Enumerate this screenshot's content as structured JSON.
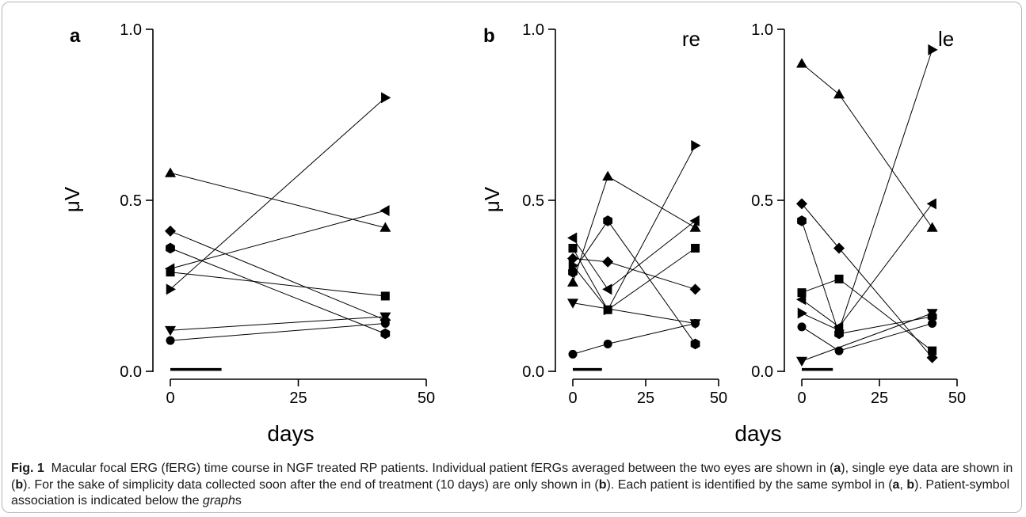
{
  "figure": {
    "panel_labels": [
      "a",
      "b"
    ],
    "units_label": "μV",
    "x_title": "days",
    "eye_labels": [
      "re",
      "le"
    ]
  },
  "caption": {
    "fig_label": "Fig. 1",
    "t1": "Macular focal ERG (fERG) time course in NGF treated RP patients. Individual patient fERGs averaged between the two eyes are shown in (",
    "a1": "a",
    "t2": "), single eye data are shown in (",
    "b1": "b",
    "t3": "). For the sake of simplicity data collected soon after the end of treatment (10 days) are only shown in (",
    "b2": "b",
    "t4": "). Each patient is identified by the same symbol in (",
    "a2": "a",
    "sep": ", ",
    "b3": "b",
    "t5": "). Patient-symbol association is indicated below the ",
    "graph_word": "graph",
    "t6": "s"
  },
  "chart_data": [
    {
      "type": "line",
      "panel": "a",
      "xlabel": "days",
      "ylabel": "μV",
      "xlim": [
        0,
        50
      ],
      "ylim": [
        0,
        1
      ],
      "xticks": [
        0,
        25,
        50
      ],
      "yticks": [
        "0.0",
        "0.5",
        "1.0"
      ],
      "treatment_period": [
        0,
        10
      ],
      "series": [
        {
          "marker": "triangle-up",
          "x": [
            0,
            42
          ],
          "y": [
            0.58,
            0.42
          ]
        },
        {
          "marker": "triangle-left",
          "x": [
            0,
            42
          ],
          "y": [
            0.3,
            0.47
          ]
        },
        {
          "marker": "triangle-right",
          "x": [
            0,
            42
          ],
          "y": [
            0.24,
            0.8
          ]
        },
        {
          "marker": "diamond",
          "x": [
            0,
            42
          ],
          "y": [
            0.41,
            0.15
          ]
        },
        {
          "marker": "hexagon",
          "x": [
            0,
            42
          ],
          "y": [
            0.36,
            0.11
          ]
        },
        {
          "marker": "square",
          "x": [
            0,
            42
          ],
          "y": [
            0.29,
            0.22
          ]
        },
        {
          "marker": "triangle-down",
          "x": [
            0,
            42
          ],
          "y": [
            0.12,
            0.16
          ]
        },
        {
          "marker": "circle",
          "x": [
            0,
            42
          ],
          "y": [
            0.09,
            0.14
          ]
        }
      ]
    },
    {
      "type": "line",
      "panel": "b",
      "eye": "re",
      "xlabel": "days",
      "ylabel": "μV",
      "xlim": [
        0,
        50
      ],
      "ylim": [
        0,
        1
      ],
      "xticks": [
        0,
        25,
        50
      ],
      "yticks": [
        "0.0",
        "0.5",
        "1.0"
      ],
      "treatment_period": [
        0,
        10
      ],
      "series": [
        {
          "marker": "triangle-up",
          "x": [
            0,
            12,
            42
          ],
          "y": [
            0.26,
            0.57,
            0.42
          ]
        },
        {
          "marker": "triangle-left",
          "x": [
            0,
            12,
            42
          ],
          "y": [
            0.39,
            0.24,
            0.44
          ]
        },
        {
          "marker": "triangle-right",
          "x": [
            0,
            12,
            42
          ],
          "y": [
            0.31,
            0.18,
            0.66
          ]
        },
        {
          "marker": "diamond",
          "x": [
            0,
            12,
            42
          ],
          "y": [
            0.33,
            0.32,
            0.24
          ]
        },
        {
          "marker": "hexagon",
          "x": [
            0,
            12,
            42
          ],
          "y": [
            0.29,
            0.44,
            0.08
          ]
        },
        {
          "marker": "square",
          "x": [
            0,
            12,
            42
          ],
          "y": [
            0.36,
            0.18,
            0.36
          ]
        },
        {
          "marker": "triangle-down",
          "x": [
            0,
            42
          ],
          "y": [
            0.2,
            0.14
          ]
        },
        {
          "marker": "circle",
          "x": [
            0,
            12,
            42
          ],
          "y": [
            0.05,
            0.08,
            0.14
          ]
        }
      ]
    },
    {
      "type": "line",
      "panel": "b",
      "eye": "le",
      "xlabel": "days",
      "xlim": [
        0,
        50
      ],
      "ylim": [
        0,
        1
      ],
      "xticks": [
        0,
        25,
        50
      ],
      "yticks": [
        "0.0",
        "0.5",
        "1.0"
      ],
      "treatment_period": [
        0,
        10
      ],
      "series": [
        {
          "marker": "triangle-up",
          "x": [
            0,
            12,
            42
          ],
          "y": [
            0.9,
            0.81,
            0.42
          ]
        },
        {
          "marker": "triangle-left",
          "x": [
            0,
            12,
            42
          ],
          "y": [
            0.21,
            0.13,
            0.49
          ]
        },
        {
          "marker": "triangle-right",
          "x": [
            0,
            12,
            42
          ],
          "y": [
            0.17,
            0.12,
            0.94
          ]
        },
        {
          "marker": "diamond",
          "x": [
            0,
            12,
            42
          ],
          "y": [
            0.49,
            0.36,
            0.04
          ]
        },
        {
          "marker": "hexagon",
          "x": [
            0,
            12,
            42
          ],
          "y": [
            0.44,
            0.11,
            0.16
          ]
        },
        {
          "marker": "square",
          "x": [
            0,
            12,
            42
          ],
          "y": [
            0.23,
            0.27,
            0.06
          ]
        },
        {
          "marker": "triangle-down",
          "x": [
            0,
            42
          ],
          "y": [
            0.03,
            0.17
          ]
        },
        {
          "marker": "circle",
          "x": [
            0,
            12,
            42
          ],
          "y": [
            0.13,
            0.06,
            0.14
          ]
        }
      ]
    }
  ]
}
